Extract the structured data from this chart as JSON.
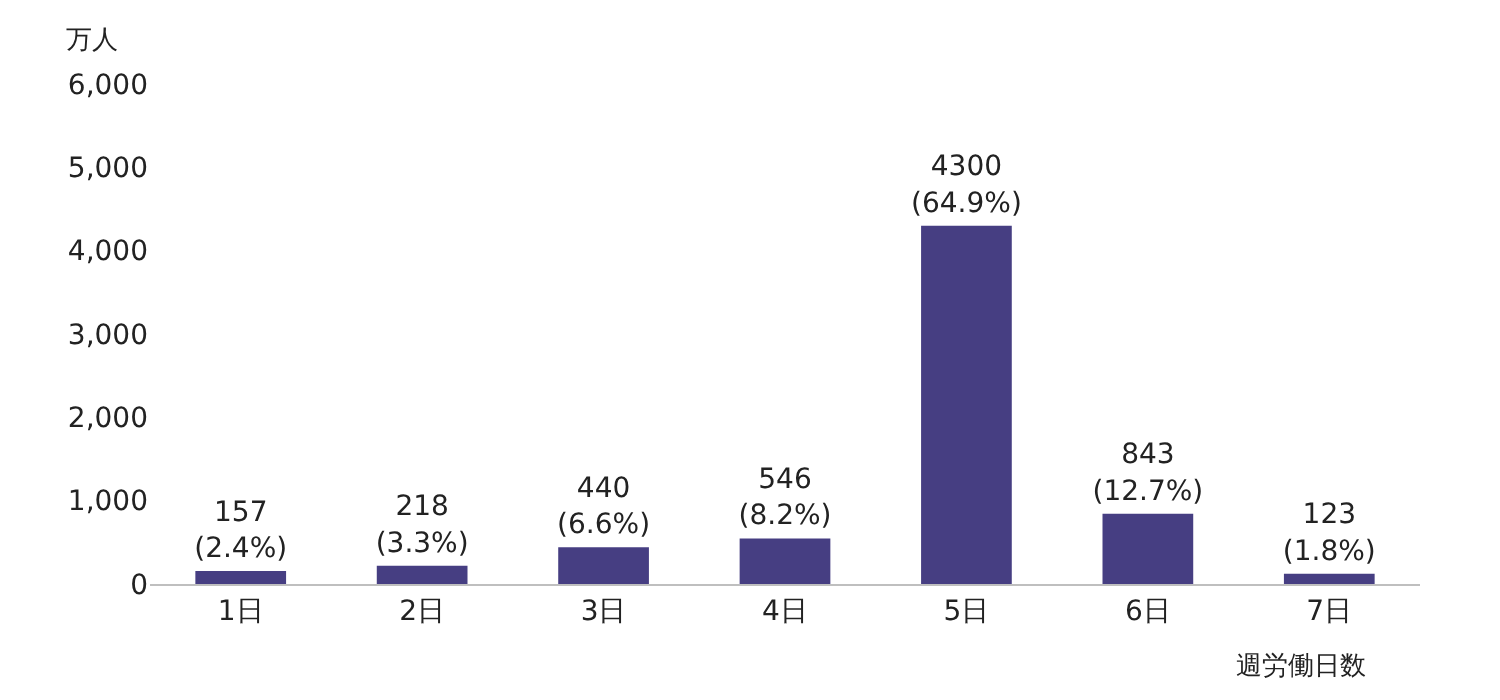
{
  "chart_data": {
    "type": "bar",
    "ylabel": "万人",
    "xlabel": "週労働日数",
    "categories": [
      "1日",
      "2日",
      "3日",
      "4日",
      "5日",
      "6日",
      "7日"
    ],
    "values": [
      157,
      218,
      440,
      546,
      4300,
      843,
      123
    ],
    "value_labels": [
      "157\n(2.4%)",
      "218\n(3.3%)",
      "440\n(6.6%)",
      "546\n(8.2%)",
      "4300\n(64.9%)",
      "843\n(12.7%)",
      "123\n(1.8%)"
    ],
    "color": "#463e82",
    "ylim": [
      0,
      6000
    ],
    "yticks": [
      {
        "value": 0,
        "label": "0"
      },
      {
        "value": 1000,
        "label": "1,000"
      },
      {
        "value": 2000,
        "label": "2,000"
      },
      {
        "value": 3000,
        "label": "3,000"
      },
      {
        "value": 4000,
        "label": "4,000"
      },
      {
        "value": 5000,
        "label": "5,000"
      },
      {
        "value": 6000,
        "label": "6,000"
      }
    ],
    "legend": false
  }
}
